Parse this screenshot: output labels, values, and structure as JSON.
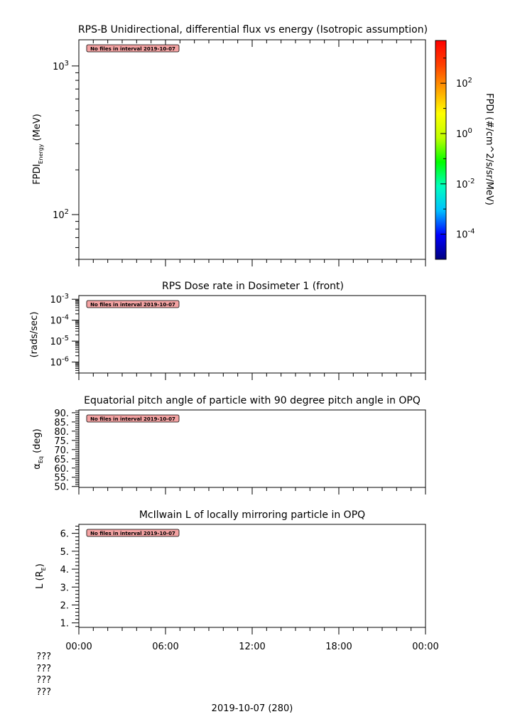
{
  "chart_data": [
    {
      "type": "heatmap",
      "title": "RPS-B  Unidirectional, differential flux vs energy (Isotropic assumption)",
      "ylabel": "FPDI",
      "ylabel_sub": "Energy",
      "ylabel_unit": "(MeV)",
      "yscale": "log",
      "ylim": [
        50,
        1500
      ],
      "y_ticks": [
        {
          "value": 100,
          "base": "10",
          "exp": "2"
        },
        {
          "value": 1000,
          "base": "10",
          "exp": "3"
        }
      ],
      "x_ticks": [
        "00:00",
        "06:00",
        "12:00",
        "18:00",
        "00:00"
      ],
      "no_data_message": "No files in interval 2019-10-07",
      "colorbar": {
        "label": "FPDI (#/cm^2/s/sr/MeV)",
        "scale": "log",
        "range": [
          1e-05,
          5000
        ],
        "ticks": [
          {
            "value": 0.0001,
            "base": "10",
            "exp": "-4"
          },
          {
            "value": 0.01,
            "base": "10",
            "exp": "-2"
          },
          {
            "value": 1,
            "base": "10",
            "exp": "0"
          },
          {
            "value": 100,
            "base": "10",
            "exp": "2"
          }
        ],
        "colors": [
          "#00007f",
          "#0000ff",
          "#00bfff",
          "#00ffbf",
          "#00ff00",
          "#bfff00",
          "#ffff00",
          "#ffa000",
          "#ff4000",
          "#ff0000"
        ]
      },
      "series": []
    },
    {
      "type": "line",
      "title": "RPS  Dose rate in Dosimeter 1 (front)",
      "ylabel": "(rads/sec)",
      "yscale": "log",
      "ylim": [
        3e-07,
        0.0015
      ],
      "y_ticks": [
        {
          "value": 1e-06,
          "base": "10",
          "exp": "-6"
        },
        {
          "value": 1e-05,
          "base": "10",
          "exp": "-5"
        },
        {
          "value": 0.0001,
          "base": "10",
          "exp": "-4"
        },
        {
          "value": 0.001,
          "base": "10",
          "exp": "-3"
        }
      ],
      "no_data_message": "No files in interval 2019-10-07",
      "series": []
    },
    {
      "type": "line",
      "title": "Equatorial pitch angle of particle with 90 degree pitch angle in OPQ",
      "ylabel": "α",
      "ylabel_sub": "Eq",
      "ylabel_unit": "(deg)",
      "ylim": [
        49.5,
        91.5
      ],
      "y_ticks": [
        "50.",
        "55.",
        "60.",
        "65.",
        "70.",
        "75.",
        "80.",
        "85.",
        "90."
      ],
      "no_data_message": "No files in interval 2019-10-07",
      "series": []
    },
    {
      "type": "line",
      "title": "McIlwain L of locally mirroring particle in OPQ",
      "ylabel": "L (R",
      "ylabel_sub": "E",
      "ylabel_end": ")",
      "ylim": [
        0.75,
        6.5
      ],
      "y_ticks": [
        "1.",
        "2.",
        "3.",
        "4.",
        "5.",
        "6."
      ],
      "no_data_message": "No files in interval 2019-10-07",
      "series": []
    }
  ],
  "time_axis": {
    "labels": [
      "00:00",
      "06:00",
      "12:00",
      "18:00",
      "00:00"
    ],
    "extra_rows": [
      "???",
      "???",
      "???",
      "???"
    ],
    "date_label": "2019-10-07 (280)"
  }
}
